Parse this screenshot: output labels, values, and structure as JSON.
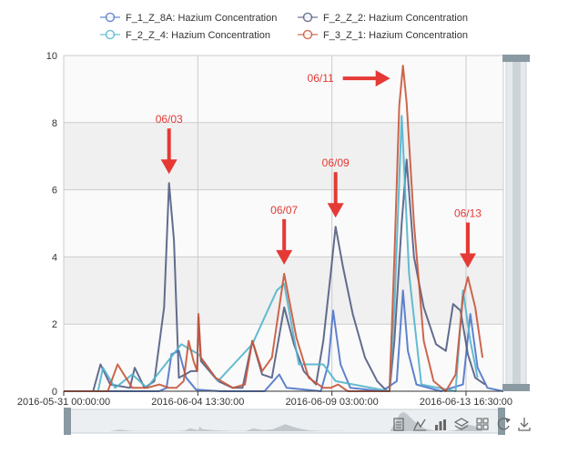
{
  "chart_data": {
    "type": "line",
    "grid": true,
    "legend": "top",
    "x_axis": {
      "type": "time",
      "range": [
        "2016-05-31 00:00:00",
        "2016-06-14 23:00:00"
      ],
      "tick_labels": [
        "2016-05-31 00:00:00",
        "2016-06-04 13:30:00",
        "2016-06-09 03:00:00",
        "2016-06-13 16:30:00"
      ]
    },
    "y_axis": {
      "range": [
        0,
        10
      ],
      "tick_labels": [
        "0",
        "2",
        "4",
        "6",
        "8",
        "10"
      ],
      "ticks": [
        0,
        2,
        4,
        6,
        8,
        10
      ]
    },
    "series": [
      {
        "name": "F_1_Z_8A: Hazium Concentration",
        "color": "#4e74c8",
        "points": [
          [
            "2016-05-31 00:00",
            0
          ],
          [
            "2016-06-03 06:00",
            0
          ],
          [
            "2016-06-03 12:00",
            0.1
          ],
          [
            "2016-06-03 16:00",
            1.1
          ],
          [
            "2016-06-03 22:00",
            1.2
          ],
          [
            "2016-06-04 04:00",
            0.4
          ],
          [
            "2016-06-04 12:00",
            0.05
          ],
          [
            "2016-06-05 08:00",
            0
          ],
          [
            "2016-06-06 20:00",
            0
          ],
          [
            "2016-06-07 08:00",
            0.5
          ],
          [
            "2016-06-07 14:00",
            0.1
          ],
          [
            "2016-06-08 18:00",
            0
          ],
          [
            "2016-06-09 00:00",
            0.8
          ],
          [
            "2016-06-09 04:00",
            2.4
          ],
          [
            "2016-06-09 10:00",
            0.8
          ],
          [
            "2016-06-09 18:00",
            0.1
          ],
          [
            "2016-06-10 20:00",
            0
          ],
          [
            "2016-06-11 08:00",
            0.3
          ],
          [
            "2016-06-11 13:00",
            3.0
          ],
          [
            "2016-06-11 17:00",
            1.2
          ],
          [
            "2016-06-12 00:00",
            0.2
          ],
          [
            "2016-06-12 20:00",
            0
          ],
          [
            "2016-06-13 14:00",
            0.2
          ],
          [
            "2016-06-13 20:00",
            2.3
          ],
          [
            "2016-06-14 02:00",
            0.7
          ],
          [
            "2016-06-14 10:00",
            0.1
          ],
          [
            "2016-06-14 23:00",
            0
          ]
        ]
      },
      {
        "name": "F_2_Z_2: Hazium Concentration",
        "color": "#525c82",
        "points": [
          [
            "2016-05-31 00:00",
            0
          ],
          [
            "2016-06-01 00:00",
            0
          ],
          [
            "2016-06-01 06:00",
            0.8
          ],
          [
            "2016-06-01 14:00",
            0.2
          ],
          [
            "2016-06-02 06:00",
            0.1
          ],
          [
            "2016-06-02 10:00",
            0.7
          ],
          [
            "2016-06-02 18:00",
            0.1
          ],
          [
            "2016-06-03 02:00",
            0.3
          ],
          [
            "2016-06-03 10:00",
            2.5
          ],
          [
            "2016-06-03 14:00",
            6.2
          ],
          [
            "2016-06-03 18:00",
            4.5
          ],
          [
            "2016-06-03 22:00",
            0.4
          ],
          [
            "2016-06-04 08:00",
            0.6
          ],
          [
            "2016-06-04 13:00",
            0.6
          ],
          [
            "2016-06-04 14:00",
            2.2
          ],
          [
            "2016-06-04 16:00",
            0.9
          ],
          [
            "2016-06-05 06:00",
            0.3
          ],
          [
            "2016-06-05 18:00",
            0.1
          ],
          [
            "2016-06-06 02:00",
            0.1
          ],
          [
            "2016-06-06 10:00",
            1.5
          ],
          [
            "2016-06-06 18:00",
            0.5
          ],
          [
            "2016-06-07 02:00",
            0.4
          ],
          [
            "2016-06-07 12:00",
            2.5
          ],
          [
            "2016-06-07 20:00",
            1.4
          ],
          [
            "2016-06-08 04:00",
            0.6
          ],
          [
            "2016-06-08 14:00",
            0.2
          ],
          [
            "2016-06-08 20:00",
            1.5
          ],
          [
            "2016-06-09 02:00",
            3.5
          ],
          [
            "2016-06-09 06:00",
            4.9
          ],
          [
            "2016-06-09 12:00",
            3.7
          ],
          [
            "2016-06-09 20:00",
            2.3
          ],
          [
            "2016-06-10 06:00",
            1.0
          ],
          [
            "2016-06-10 16:00",
            0.3
          ],
          [
            "2016-06-11 00:00",
            0
          ],
          [
            "2016-06-11 02:00",
            0
          ],
          [
            "2016-06-11 06:00",
            1.5
          ],
          [
            "2016-06-11 12:00",
            5.0
          ],
          [
            "2016-06-11 16:00",
            6.9
          ],
          [
            "2016-06-11 22:00",
            4.0
          ],
          [
            "2016-06-12 06:00",
            2.5
          ],
          [
            "2016-06-12 16:00",
            1.4
          ],
          [
            "2016-06-13 00:00",
            1.2
          ],
          [
            "2016-06-13 06:00",
            2.6
          ],
          [
            "2016-06-13 12:00",
            2.4
          ],
          [
            "2016-06-13 18:00",
            1.1
          ],
          [
            "2016-06-14 00:00",
            0.4
          ],
          [
            "2016-06-14 08:00",
            0.2
          ]
        ]
      },
      {
        "name": "F_2_Z_4: Hazium Concentration",
        "color": "#52b4cc",
        "points": [
          [
            "2016-05-31 00:00",
            0
          ],
          [
            "2016-06-01 04:00",
            0
          ],
          [
            "2016-06-01 08:00",
            0.7
          ],
          [
            "2016-06-01 18:00",
            0.1
          ],
          [
            "2016-06-02 08:00",
            0.5
          ],
          [
            "2016-06-02 20:00",
            0.1
          ],
          [
            "2016-06-04 00:00",
            1.4
          ],
          [
            "2016-06-04 14:00",
            1.1
          ],
          [
            "2016-06-05 06:00",
            0.3
          ],
          [
            "2016-06-06 10:00",
            1.4
          ],
          [
            "2016-06-07 06:00",
            3.0
          ],
          [
            "2016-06-07 12:00",
            3.2
          ],
          [
            "2016-06-08 00:00",
            0.8
          ],
          [
            "2016-06-08 20:00",
            0.8
          ],
          [
            "2016-06-09 06:00",
            0.3
          ],
          [
            "2016-06-11 02:00",
            0
          ],
          [
            "2016-06-11 06:00",
            2.5
          ],
          [
            "2016-06-11 12:00",
            8.2
          ],
          [
            "2016-06-11 18:00",
            3.5
          ],
          [
            "2016-06-12 04:00",
            0.2
          ],
          [
            "2016-06-13 08:00",
            0
          ],
          [
            "2016-06-13 14:00",
            3.0
          ],
          [
            "2016-06-13 20:00",
            1.5
          ],
          [
            "2016-06-14 02:00",
            0.4
          ]
        ]
      },
      {
        "name": "F_3_Z_1: Hazium Concentration",
        "color": "#c8553a",
        "points": [
          [
            "2016-05-31 00:00",
            0
          ],
          [
            "2016-06-01 12:00",
            0
          ],
          [
            "2016-06-01 20:00",
            0.8
          ],
          [
            "2016-06-02 08:00",
            0.1
          ],
          [
            "2016-06-02 20:00",
            0.1
          ],
          [
            "2016-06-03 06:00",
            0.2
          ],
          [
            "2016-06-03 14:00",
            0.1
          ],
          [
            "2016-06-03 20:00",
            0.1
          ],
          [
            "2016-06-04 02:00",
            0.3
          ],
          [
            "2016-06-04 06:00",
            1.5
          ],
          [
            "2016-06-04 10:00",
            0.9
          ],
          [
            "2016-06-04 13:00",
            0.6
          ],
          [
            "2016-06-04 14:00",
            2.3
          ],
          [
            "2016-06-04 16:00",
            1.0
          ],
          [
            "2016-06-05 04:00",
            0.4
          ],
          [
            "2016-06-05 18:00",
            0.1
          ],
          [
            "2016-06-06 04:00",
            0.2
          ],
          [
            "2016-06-06 10:00",
            1.5
          ],
          [
            "2016-06-06 18:00",
            0.6
          ],
          [
            "2016-06-07 02:00",
            1.0
          ],
          [
            "2016-06-07 12:00",
            3.5
          ],
          [
            "2016-06-07 22:00",
            1.6
          ],
          [
            "2016-06-08 08:00",
            0.4
          ],
          [
            "2016-06-08 20:00",
            0.1
          ],
          [
            "2016-06-09 02:00",
            0.1
          ],
          [
            "2016-06-09 08:00",
            0.2
          ],
          [
            "2016-06-09 16:00",
            0
          ],
          [
            "2016-06-11 02:00",
            0
          ],
          [
            "2016-06-11 06:00",
            4.0
          ],
          [
            "2016-06-11 10:00",
            8.5
          ],
          [
            "2016-06-11 13:00",
            9.7
          ],
          [
            "2016-06-11 16:00",
            8.6
          ],
          [
            "2016-06-11 22:00",
            5.0
          ],
          [
            "2016-06-12 06:00",
            1.5
          ],
          [
            "2016-06-12 14:00",
            0.3
          ],
          [
            "2016-06-13 00:00",
            0
          ],
          [
            "2016-06-13 08:00",
            0.5
          ],
          [
            "2016-06-13 14:00",
            2.8
          ],
          [
            "2016-06-13 18:00",
            3.4
          ],
          [
            "2016-06-14 00:00",
            2.5
          ],
          [
            "2016-06-14 06:00",
            1.0
          ]
        ]
      }
    ],
    "annotations": [
      {
        "label": "06/03",
        "x": "2016-06-03 14:00",
        "color": "#e53935",
        "direction": "down"
      },
      {
        "label": "06/07",
        "x": "2016-06-07 12:00",
        "color": "#e53935",
        "direction": "down"
      },
      {
        "label": "06/09",
        "x": "2016-06-09 06:00",
        "color": "#e53935",
        "direction": "down"
      },
      {
        "label": "06/11",
        "x": "2016-06-11 13:00",
        "color": "#e53935",
        "direction": "right"
      },
      {
        "label": "06/13",
        "x": "2016-06-13 18:00",
        "color": "#e53935",
        "direction": "down"
      }
    ]
  },
  "toolbox": {
    "icons": [
      "data-view-icon",
      "line-chart-icon",
      "bar-chart-icon",
      "stack-icon",
      "tiled-icon",
      "restore-icon",
      "save-image-icon"
    ]
  },
  "data_zoom": {
    "color": "#b7c2c8"
  }
}
